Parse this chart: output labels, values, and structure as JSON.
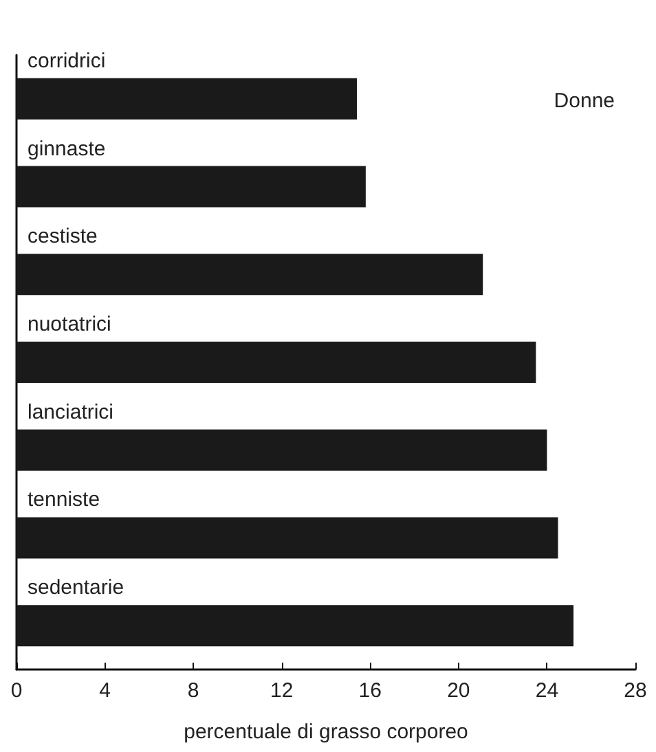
{
  "chart_data": {
    "type": "bar",
    "orientation": "horizontal",
    "xlabel": "percentuale di grasso corporeo",
    "annotations": [
      "Donne"
    ],
    "categories": [
      "corridrici",
      "ginnaste",
      "cestiste",
      "nuotatrici",
      "lanciatrici",
      "tenniste",
      "sedentarie"
    ],
    "values": [
      15.4,
      15.8,
      21.1,
      23.5,
      24.0,
      24.5,
      25.2
    ],
    "color": "#1a1a1a",
    "xlim": [
      0,
      28
    ],
    "xticks": [
      0,
      4,
      8,
      12,
      16,
      20,
      24,
      28
    ],
    "grid": false
  }
}
